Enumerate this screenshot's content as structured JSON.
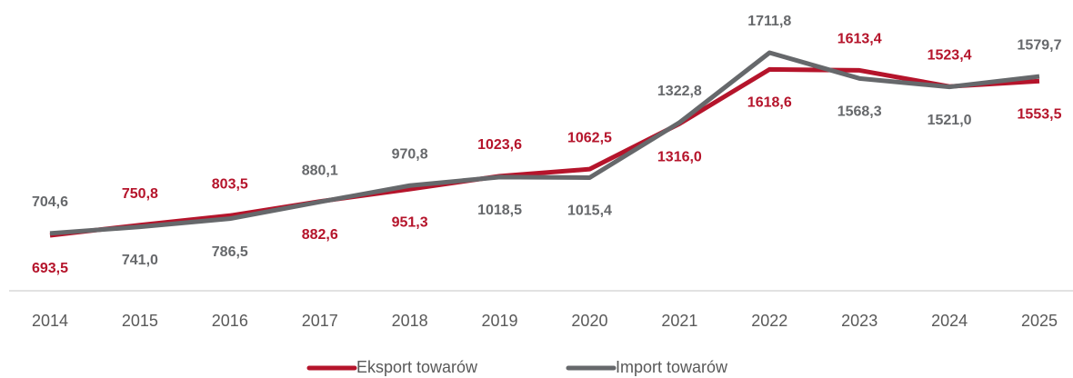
{
  "chart_data": {
    "type": "line",
    "categories": [
      "2014",
      "2015",
      "2016",
      "2017",
      "2018",
      "2019",
      "2020",
      "2021",
      "2022",
      "2023",
      "2024",
      "2025"
    ],
    "series": [
      {
        "name": "Eksport towarów",
        "color": "#b5142b",
        "values": [
          693.5,
          750.8,
          803.5,
          882.6,
          951.3,
          1023.6,
          1062.5,
          1316.0,
          1618.6,
          1613.4,
          1523.4,
          1553.5
        ],
        "value_labels": [
          "693,5",
          "750,8",
          "803,5",
          "882,6",
          "951,3",
          "1023,6",
          "1062,5",
          "1316,0",
          "1618,6",
          "1613,4",
          "1523,4",
          "1553,5"
        ]
      },
      {
        "name": "Import towarów",
        "color": "#66686b",
        "values": [
          704.6,
          741.0,
          786.5,
          880.1,
          970.8,
          1018.5,
          1015.4,
          1322.8,
          1711.8,
          1568.3,
          1521.0,
          1579.7
        ],
        "value_labels": [
          "704,6",
          "741,0",
          "786,5",
          "880,1",
          "970,8",
          "1018,5",
          "1015,4",
          "1322,8",
          "1711,8",
          "1568,3",
          "1521,0",
          "1579,7"
        ]
      }
    ],
    "legend": "bottom"
  }
}
